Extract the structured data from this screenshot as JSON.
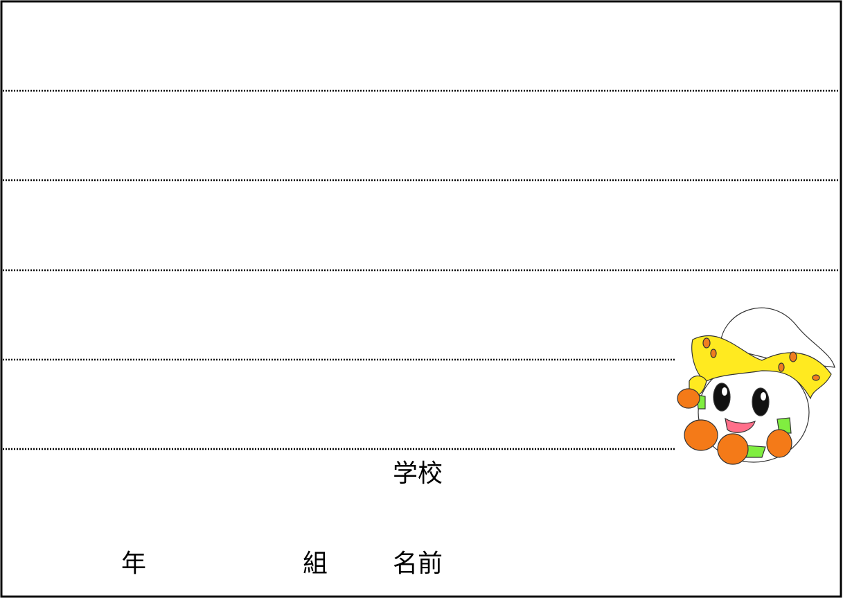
{
  "form": {
    "school_label": "学校",
    "grade_label": "年",
    "class_label": "組",
    "name_label": "名前"
  }
}
